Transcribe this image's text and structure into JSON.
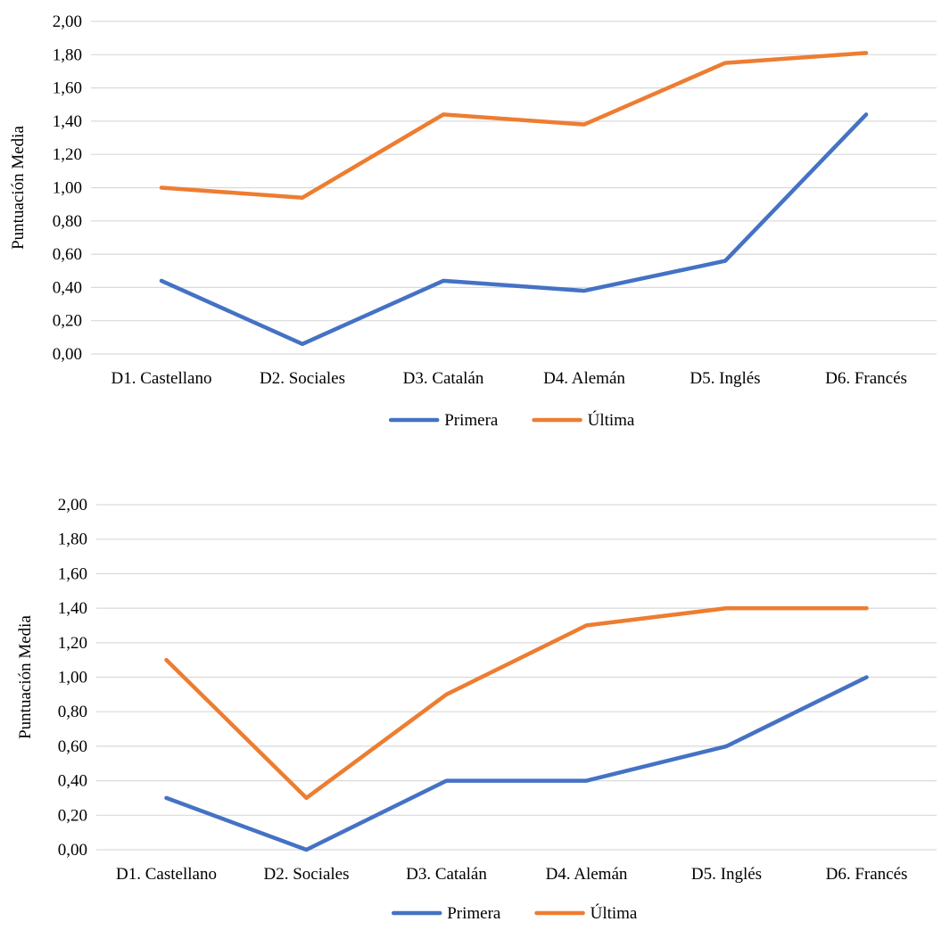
{
  "chart_data": [
    {
      "type": "line",
      "ylabel": "Puntuación Media",
      "categories": [
        "D1. Castellano",
        "D2. Sociales",
        "D3. Catalán",
        "D4. Alemán",
        "D5. Inglés",
        "D6. Francés"
      ],
      "ylim": [
        0,
        2
      ],
      "yticks": [
        "0,00",
        "0,20",
        "0,40",
        "0,60",
        "0,80",
        "1,00",
        "1,20",
        "1,40",
        "1,60",
        "1,80",
        "2,00"
      ],
      "grid": true,
      "legend_position": "bottom",
      "series": [
        {
          "name": "Primera",
          "color": "#4472c4",
          "values": [
            0.44,
            0.06,
            0.44,
            0.38,
            0.56,
            1.44
          ]
        },
        {
          "name": "Última",
          "color": "#ed7d31",
          "values": [
            1.0,
            0.94,
            1.44,
            1.38,
            1.75,
            1.81
          ]
        }
      ]
    },
    {
      "type": "line",
      "ylabel": "Puntuación Media",
      "categories": [
        "D1. Castellano",
        "D2. Sociales",
        "D3. Catalán",
        "D4. Alemán",
        "D5. Inglés",
        "D6. Francés"
      ],
      "ylim": [
        0,
        2
      ],
      "yticks": [
        "0,00",
        "0,20",
        "0,40",
        "0,60",
        "0,80",
        "1,00",
        "1,20",
        "1,40",
        "1,60",
        "1,80",
        "2,00"
      ],
      "grid": true,
      "legend_position": "bottom",
      "series": [
        {
          "name": "Primera",
          "color": "#4472c4",
          "values": [
            0.3,
            0.0,
            0.4,
            0.4,
            0.6,
            1.0
          ]
        },
        {
          "name": "Última",
          "color": "#ed7d31",
          "values": [
            1.1,
            0.3,
            0.9,
            1.3,
            1.4,
            1.4
          ]
        }
      ]
    }
  ]
}
